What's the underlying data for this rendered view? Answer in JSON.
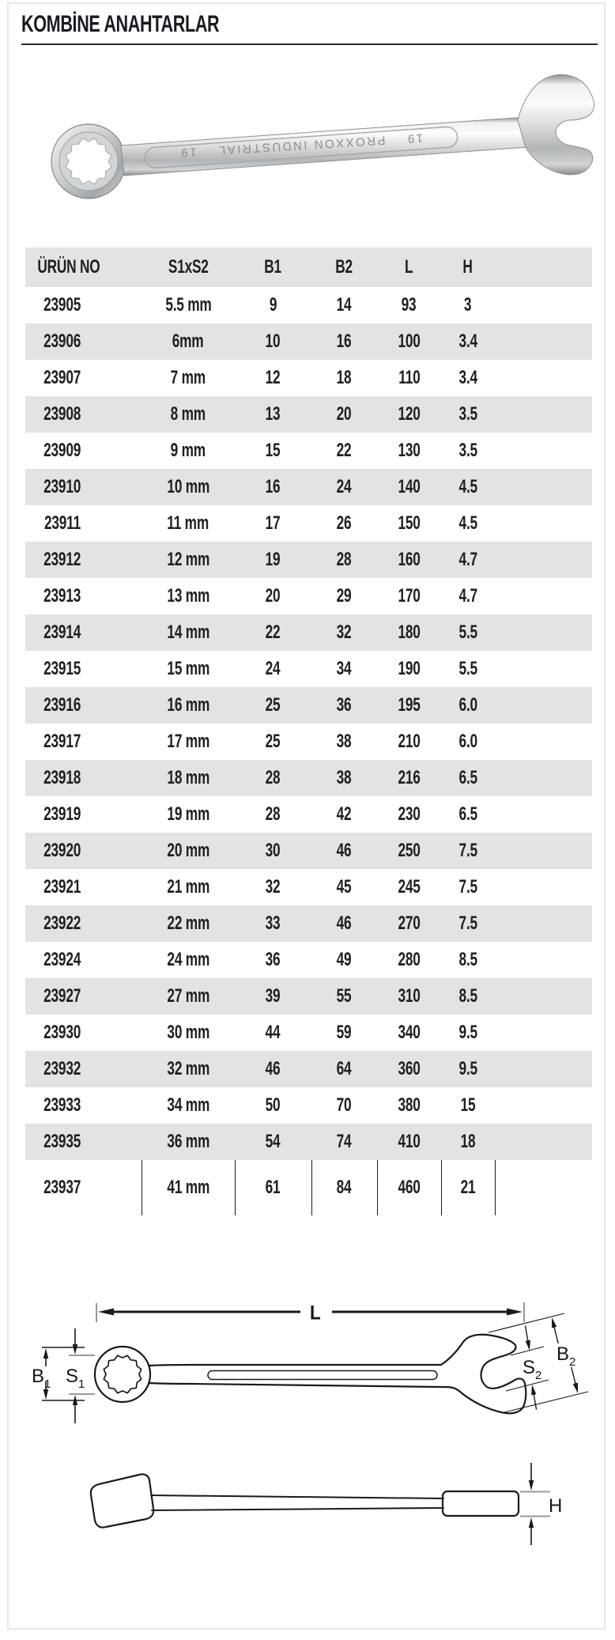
{
  "page": {
    "title": "KOMBİNE ANAHTARLAR"
  },
  "product_photo": {
    "stamp_size_left": "19",
    "stamp_brand": "PROXXON INDUSTRIAL",
    "stamp_size_right": "19"
  },
  "table": {
    "headers": [
      "ÜRÜN NO",
      "S1xS2",
      "B1",
      "B2",
      "L",
      "H"
    ],
    "rows": [
      [
        "23905",
        "5.5 mm",
        "9",
        "14",
        "93",
        "3"
      ],
      [
        "23906",
        "6mm",
        "10",
        "16",
        "100",
        "3.4"
      ],
      [
        "23907",
        "7 mm",
        "12",
        "18",
        "110",
        "3.4"
      ],
      [
        "23908",
        "8 mm",
        "13",
        "20",
        "120",
        "3.5"
      ],
      [
        "23909",
        "9 mm",
        "15",
        "22",
        "130",
        "3.5"
      ],
      [
        "23910",
        "10 mm",
        "16",
        "24",
        "140",
        "4.5"
      ],
      [
        "23911",
        "11 mm",
        "17",
        "26",
        "150",
        "4.5"
      ],
      [
        "23912",
        "12 mm",
        "19",
        "28",
        "160",
        "4.7"
      ],
      [
        "23913",
        "13 mm",
        "20",
        "29",
        "170",
        "4.7"
      ],
      [
        "23914",
        "14 mm",
        "22",
        "32",
        "180",
        "5.5"
      ],
      [
        "23915",
        "15 mm",
        "24",
        "34",
        "190",
        "5.5"
      ],
      [
        "23916",
        "16 mm",
        "25",
        "36",
        "195",
        "6.0"
      ],
      [
        "23917",
        "17 mm",
        "25",
        "38",
        "210",
        "6.0"
      ],
      [
        "23918",
        "18 mm",
        "28",
        "38",
        "216",
        "6.5"
      ],
      [
        "23919",
        "19 mm",
        "28",
        "42",
        "230",
        "6.5"
      ],
      [
        "23920",
        "20 mm",
        "30",
        "46",
        "250",
        "7.5"
      ],
      [
        "23921",
        "21 mm",
        "32",
        "45",
        "245",
        "7.5"
      ],
      [
        "23922",
        "22 mm",
        "33",
        "46",
        "270",
        "7.5"
      ],
      [
        "23924",
        "24 mm",
        "36",
        "49",
        "280",
        "8.5"
      ],
      [
        "23927",
        "27 mm",
        "39",
        "55",
        "310",
        "8.5"
      ],
      [
        "23930",
        "30 mm",
        "44",
        "59",
        "340",
        "9.5"
      ],
      [
        "23932",
        "32 mm",
        "46",
        "64",
        "360",
        "9.5"
      ],
      [
        "23933",
        "34 mm",
        "50",
        "70",
        "380",
        "15"
      ],
      [
        "23935",
        "36 mm",
        "54",
        "74",
        "410",
        "18"
      ],
      [
        "23937",
        "41 mm",
        "61",
        "84",
        "460",
        "21"
      ]
    ]
  },
  "diagram": {
    "dim_l": "L",
    "dim_b1_main": "B",
    "dim_b1_sub": "1",
    "dim_s1_main": "S",
    "dim_s1_sub": "1",
    "dim_s2_main": "S",
    "dim_s2_sub": "2",
    "dim_b2_main": "B",
    "dim_b2_sub": "2",
    "dim_h": "H"
  },
  "colors": {
    "row_shade": "#e3e3e3",
    "frame_border": "#e7e7e7",
    "text": "#202020",
    "dim_gray_tick": "#9a9a9a"
  }
}
